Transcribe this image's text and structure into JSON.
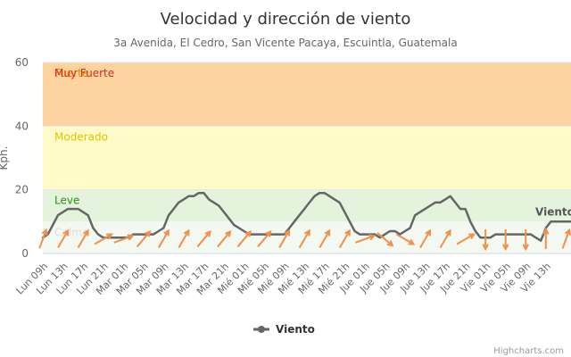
{
  "chart_data": {
    "type": "line",
    "title": "Velocidad y dirección de viento",
    "subtitle": "3a Avenida, El Cedro, San Vicente Pacaya, Escuintla, Guatemala",
    "ylabel": "Kph.",
    "ylim": [
      0,
      60
    ],
    "yticks": [
      "0",
      "20",
      "40",
      "60"
    ],
    "xticks": [
      "Lun 09h",
      "Lun 13h",
      "Lun 17h",
      "Lun 21h",
      "Mar 01h",
      "Mar 05h",
      "Mar 09h",
      "Mar 13h",
      "Mar 17h",
      "Mar 21h",
      "Mié 01h",
      "Mié 05h",
      "Mié 09h",
      "Mié 13h",
      "Mié 17h",
      "Mié 21h",
      "Jue 01h",
      "Jue 05h",
      "Jue 09h",
      "Jue 13h",
      "Jue 17h",
      "Jue 21h",
      "Vie 01h",
      "Vie 05h",
      "Vie 09h",
      "Vie 13h"
    ],
    "bands": [
      {
        "label": "Calma",
        "from": 0,
        "to": 10,
        "color": "#f3f9f1",
        "label_color": "#dddddd"
      },
      {
        "label": "Leve",
        "from": 10,
        "to": 20,
        "color": "#e4f4dc",
        "label_color": "#2f8f1f"
      },
      {
        "label": "Moderado",
        "from": 20,
        "to": 40,
        "color": "#fffbc9",
        "label_color": "#e0c400"
      },
      {
        "label": "Fuerte",
        "from": 40,
        "to": 60,
        "color": "#fdd39f",
        "label_color": "#e08a00"
      },
      {
        "label": "Muy Fuerte",
        "from": 58,
        "to": 60,
        "color": "#fdd39f",
        "label_color": "#d62a1a"
      }
    ],
    "series": [
      {
        "name": "Viento",
        "color": "#666666",
        "values": [
          5,
          6,
          9,
          12,
          13,
          14,
          14,
          14,
          13,
          12,
          8,
          6,
          5,
          5,
          5,
          5,
          5,
          5,
          6,
          6,
          6,
          6,
          6,
          7,
          8,
          12,
          14,
          16,
          17,
          18,
          18,
          19,
          19,
          17,
          16,
          15,
          13,
          11,
          9,
          8,
          7,
          6,
          6,
          6,
          6,
          6,
          6,
          6,
          6,
          8,
          10,
          12,
          14,
          16,
          18,
          19,
          19,
          18,
          17,
          16,
          13,
          10,
          7,
          6,
          6,
          6,
          6,
          5,
          6,
          7,
          7,
          6,
          7,
          8,
          12,
          13,
          14,
          15,
          16,
          16,
          17,
          18,
          16,
          14,
          14,
          10,
          7,
          5,
          5,
          5,
          6,
          6,
          6,
          6,
          6,
          6,
          6,
          6,
          5,
          4,
          8,
          10,
          10,
          10,
          10,
          10
        ],
        "direction_deg": [
          20,
          20,
          30,
          30,
          30,
          30,
          40,
          40,
          30,
          30,
          60,
          60,
          60,
          60,
          60,
          60,
          70,
          70,
          150,
          150,
          40,
          40,
          40,
          40,
          30,
          30,
          30,
          30,
          30,
          30,
          30,
          30,
          40,
          40,
          40,
          40,
          40,
          40,
          40,
          40,
          40,
          40,
          40,
          40,
          40,
          40,
          40,
          40,
          30,
          30,
          30,
          30,
          30,
          30,
          30,
          30,
          30,
          30,
          30,
          30,
          30,
          30,
          70,
          70,
          70,
          70,
          70,
          70,
          130,
          130,
          180,
          180,
          120,
          120,
          30,
          30,
          30,
          30,
          30,
          30,
          30,
          30,
          60,
          60,
          60,
          60,
          180,
          180,
          180,
          180,
          180,
          180,
          180,
          180,
          180,
          180,
          180,
          180,
          150,
          150,
          0,
          0,
          20,
          20,
          20,
          20
        ]
      }
    ]
  },
  "legend": {
    "items": [
      "Viento"
    ]
  },
  "credits": "Highcharts.com"
}
